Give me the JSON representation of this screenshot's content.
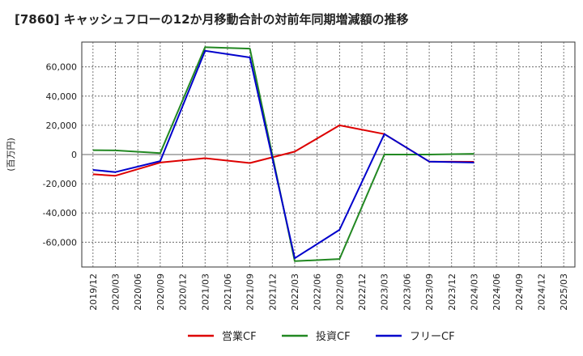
{
  "chart_data": {
    "type": "line",
    "title": "[7860]  キャッシュフローの12か月移動合計の対前年同期増減額の推移",
    "ylabel": "(百万円)",
    "xlabel": "",
    "ylim": [
      -77000,
      77000
    ],
    "yticks": [
      -60000,
      -40000,
      -20000,
      0,
      20000,
      40000,
      60000
    ],
    "ytick_labels": [
      "-60,000",
      "-40,000",
      "-20,000",
      "0",
      "20,000",
      "40,000",
      "60,000"
    ],
    "categories": [
      "2019/12",
      "2020/03",
      "2020/06",
      "2020/09",
      "2020/12",
      "2021/03",
      "2021/06",
      "2021/09",
      "2021/12",
      "2022/03",
      "2022/06",
      "2022/09",
      "2022/12",
      "2023/03",
      "2023/06",
      "2023/09",
      "2023/12",
      "2024/03",
      "2024/06",
      "2024/09",
      "2024/12",
      "2025/03"
    ],
    "grid": true,
    "legend_position": "bottom",
    "series": [
      {
        "name": "営業CF",
        "color": "#dd0000",
        "points": [
          [
            "2019/12",
            -13500
          ],
          [
            "2020/03",
            -14500
          ],
          [
            "2020/09",
            -5500
          ],
          [
            "2021/03",
            -2500
          ],
          [
            "2021/09",
            -5800
          ],
          [
            "2022/03",
            2000
          ],
          [
            "2022/09",
            20000
          ],
          [
            "2023/03",
            14000
          ],
          [
            "2023/09",
            -4800
          ],
          [
            "2024/03",
            -5000
          ]
        ]
      },
      {
        "name": "投資CF",
        "color": "#228822",
        "points": [
          [
            "2019/12",
            3000
          ],
          [
            "2020/03",
            2800
          ],
          [
            "2020/09",
            1000
          ],
          [
            "2021/03",
            73500
          ],
          [
            "2021/09",
            72500
          ],
          [
            "2022/03",
            -73000
          ],
          [
            "2022/09",
            -71500
          ],
          [
            "2023/03",
            0
          ],
          [
            "2023/09",
            0
          ],
          [
            "2024/03",
            500
          ]
        ]
      },
      {
        "name": "フリーCF",
        "color": "#0000cc",
        "points": [
          [
            "2019/12",
            -10500
          ],
          [
            "2020/03",
            -12000
          ],
          [
            "2020/09",
            -4500
          ],
          [
            "2021/03",
            71000
          ],
          [
            "2021/09",
            66500
          ],
          [
            "2022/03",
            -71000
          ],
          [
            "2022/09",
            -51500
          ],
          [
            "2023/03",
            14000
          ],
          [
            "2023/09",
            -4800
          ],
          [
            "2024/03",
            -5500
          ]
        ]
      }
    ]
  }
}
